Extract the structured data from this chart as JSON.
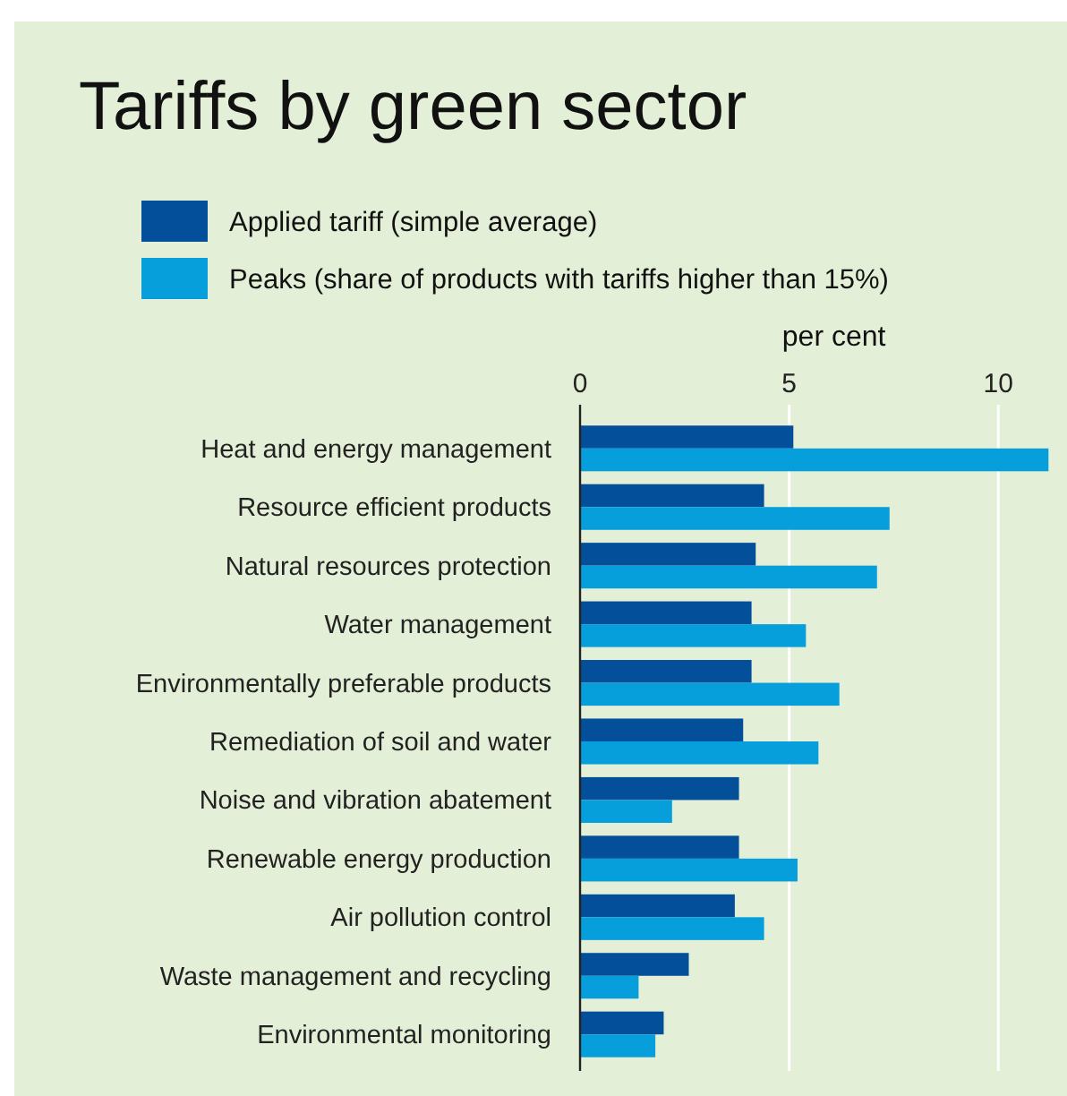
{
  "chart_data": {
    "type": "bar",
    "orientation": "horizontal",
    "title": "Tariffs by green sector",
    "xlabel": "per cent",
    "categories": [
      "Heat and energy management",
      "Resource efficient products",
      "Natural resources protection",
      "Water management",
      "Environmentally preferable products",
      "Remediation of soil and water",
      "Noise and vibration abatement",
      "Renewable energy production",
      "Air pollution control",
      "Waste management and recycling",
      "Environmental monitoring"
    ],
    "series": [
      {
        "name": "Applied tariff (simple average)",
        "color": "#034f9a",
        "values": [
          5.1,
          4.4,
          4.2,
          4.1,
          4.1,
          3.9,
          3.8,
          3.8,
          3.7,
          2.6,
          2.0
        ]
      },
      {
        "name": "Peaks (share of products with tariffs higher than 15%)",
        "color": "#079fdb",
        "values": [
          11.2,
          7.4,
          7.1,
          5.4,
          6.2,
          5.7,
          2.2,
          5.2,
          4.4,
          1.4,
          1.8
        ]
      }
    ],
    "xlim": [
      0,
      11.3
    ],
    "xticks": [
      0,
      5,
      10
    ],
    "grid": "x",
    "legend": "top left"
  }
}
